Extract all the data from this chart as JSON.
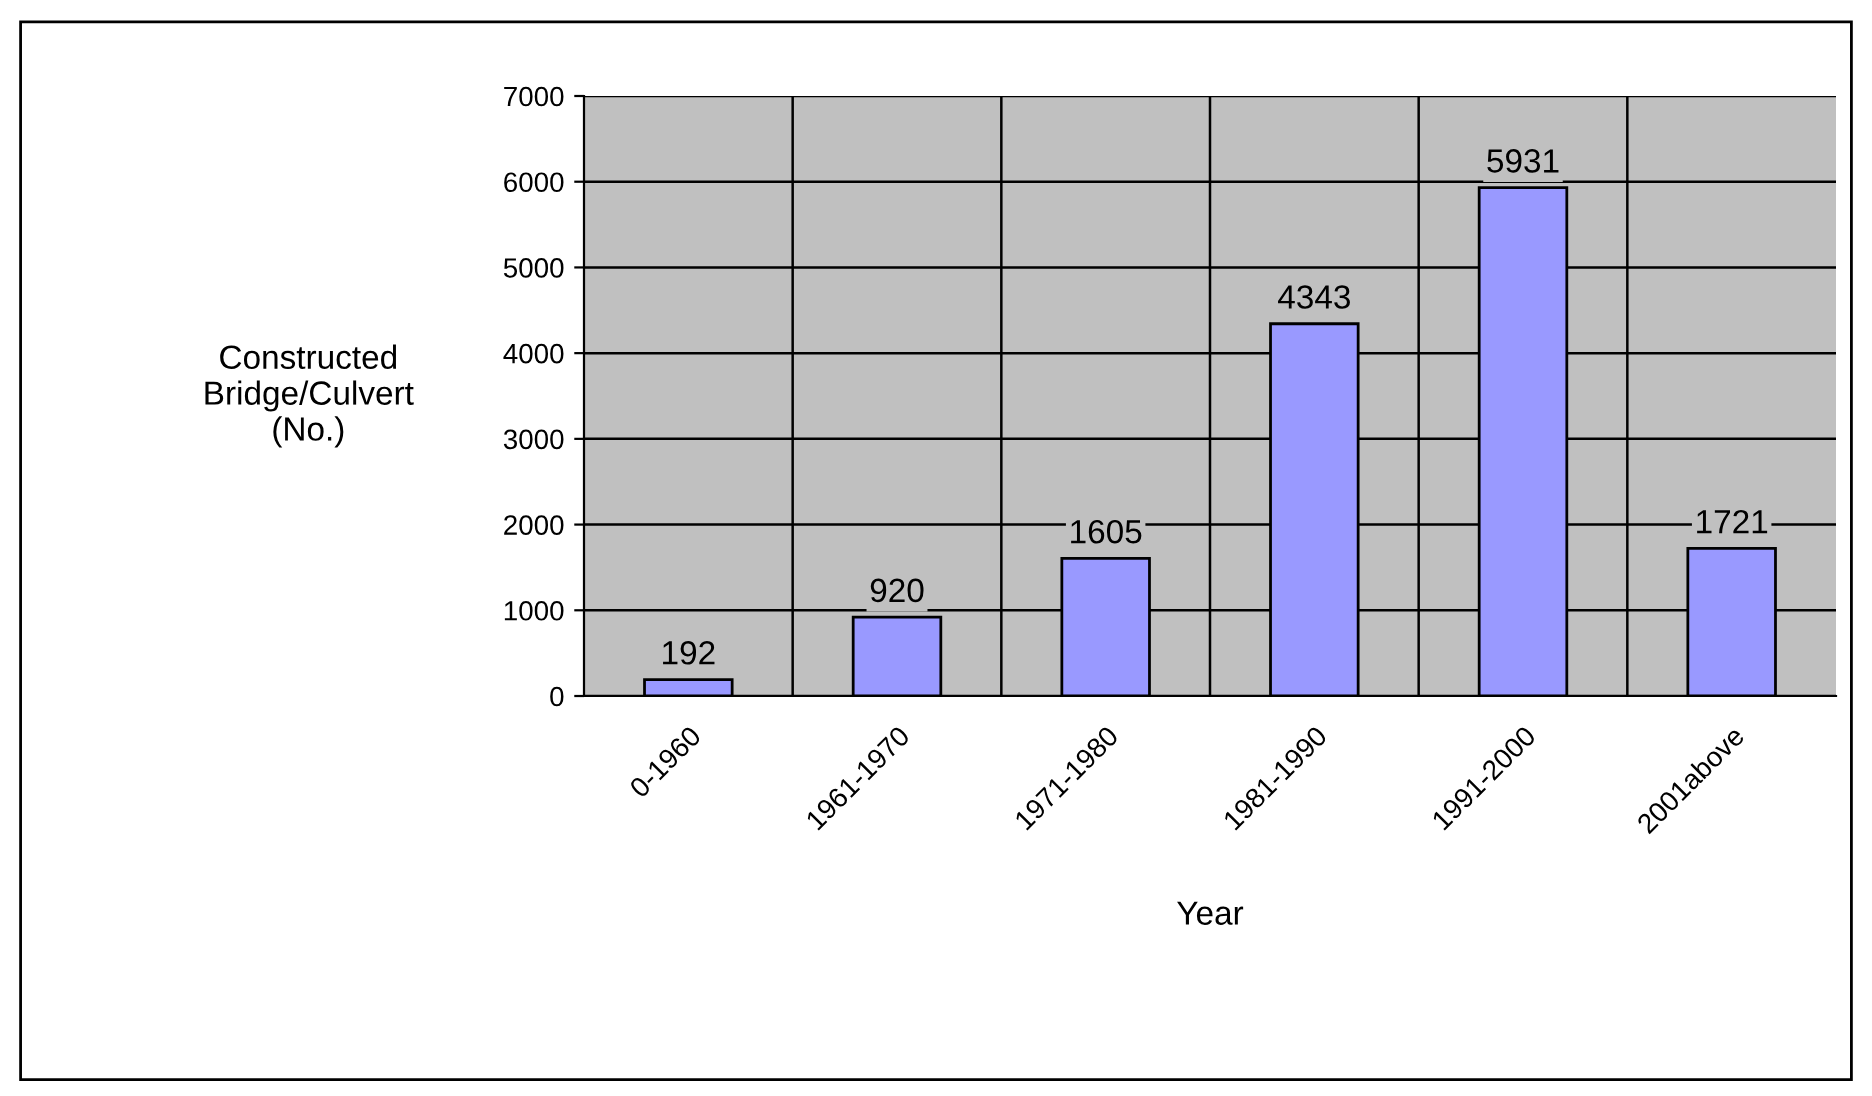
{
  "chart_data": {
    "type": "bar",
    "categories": [
      "0-1960",
      "1961-1970",
      "1971-1980",
      "1981-1990",
      "1991-2000",
      "2001above"
    ],
    "values": [
      192,
      920,
      1605,
      4343,
      5931,
      1721
    ],
    "color": "#9999ff",
    "xlabel": "Year",
    "ylabel": "Constructed\nBridge/Culvert\n(No.)",
    "ylim": [
      0,
      7000
    ],
    "yticks": [
      0,
      1000,
      2000,
      3000,
      4000,
      5000,
      6000,
      7000
    ],
    "grid": true,
    "data_labels": true
  }
}
